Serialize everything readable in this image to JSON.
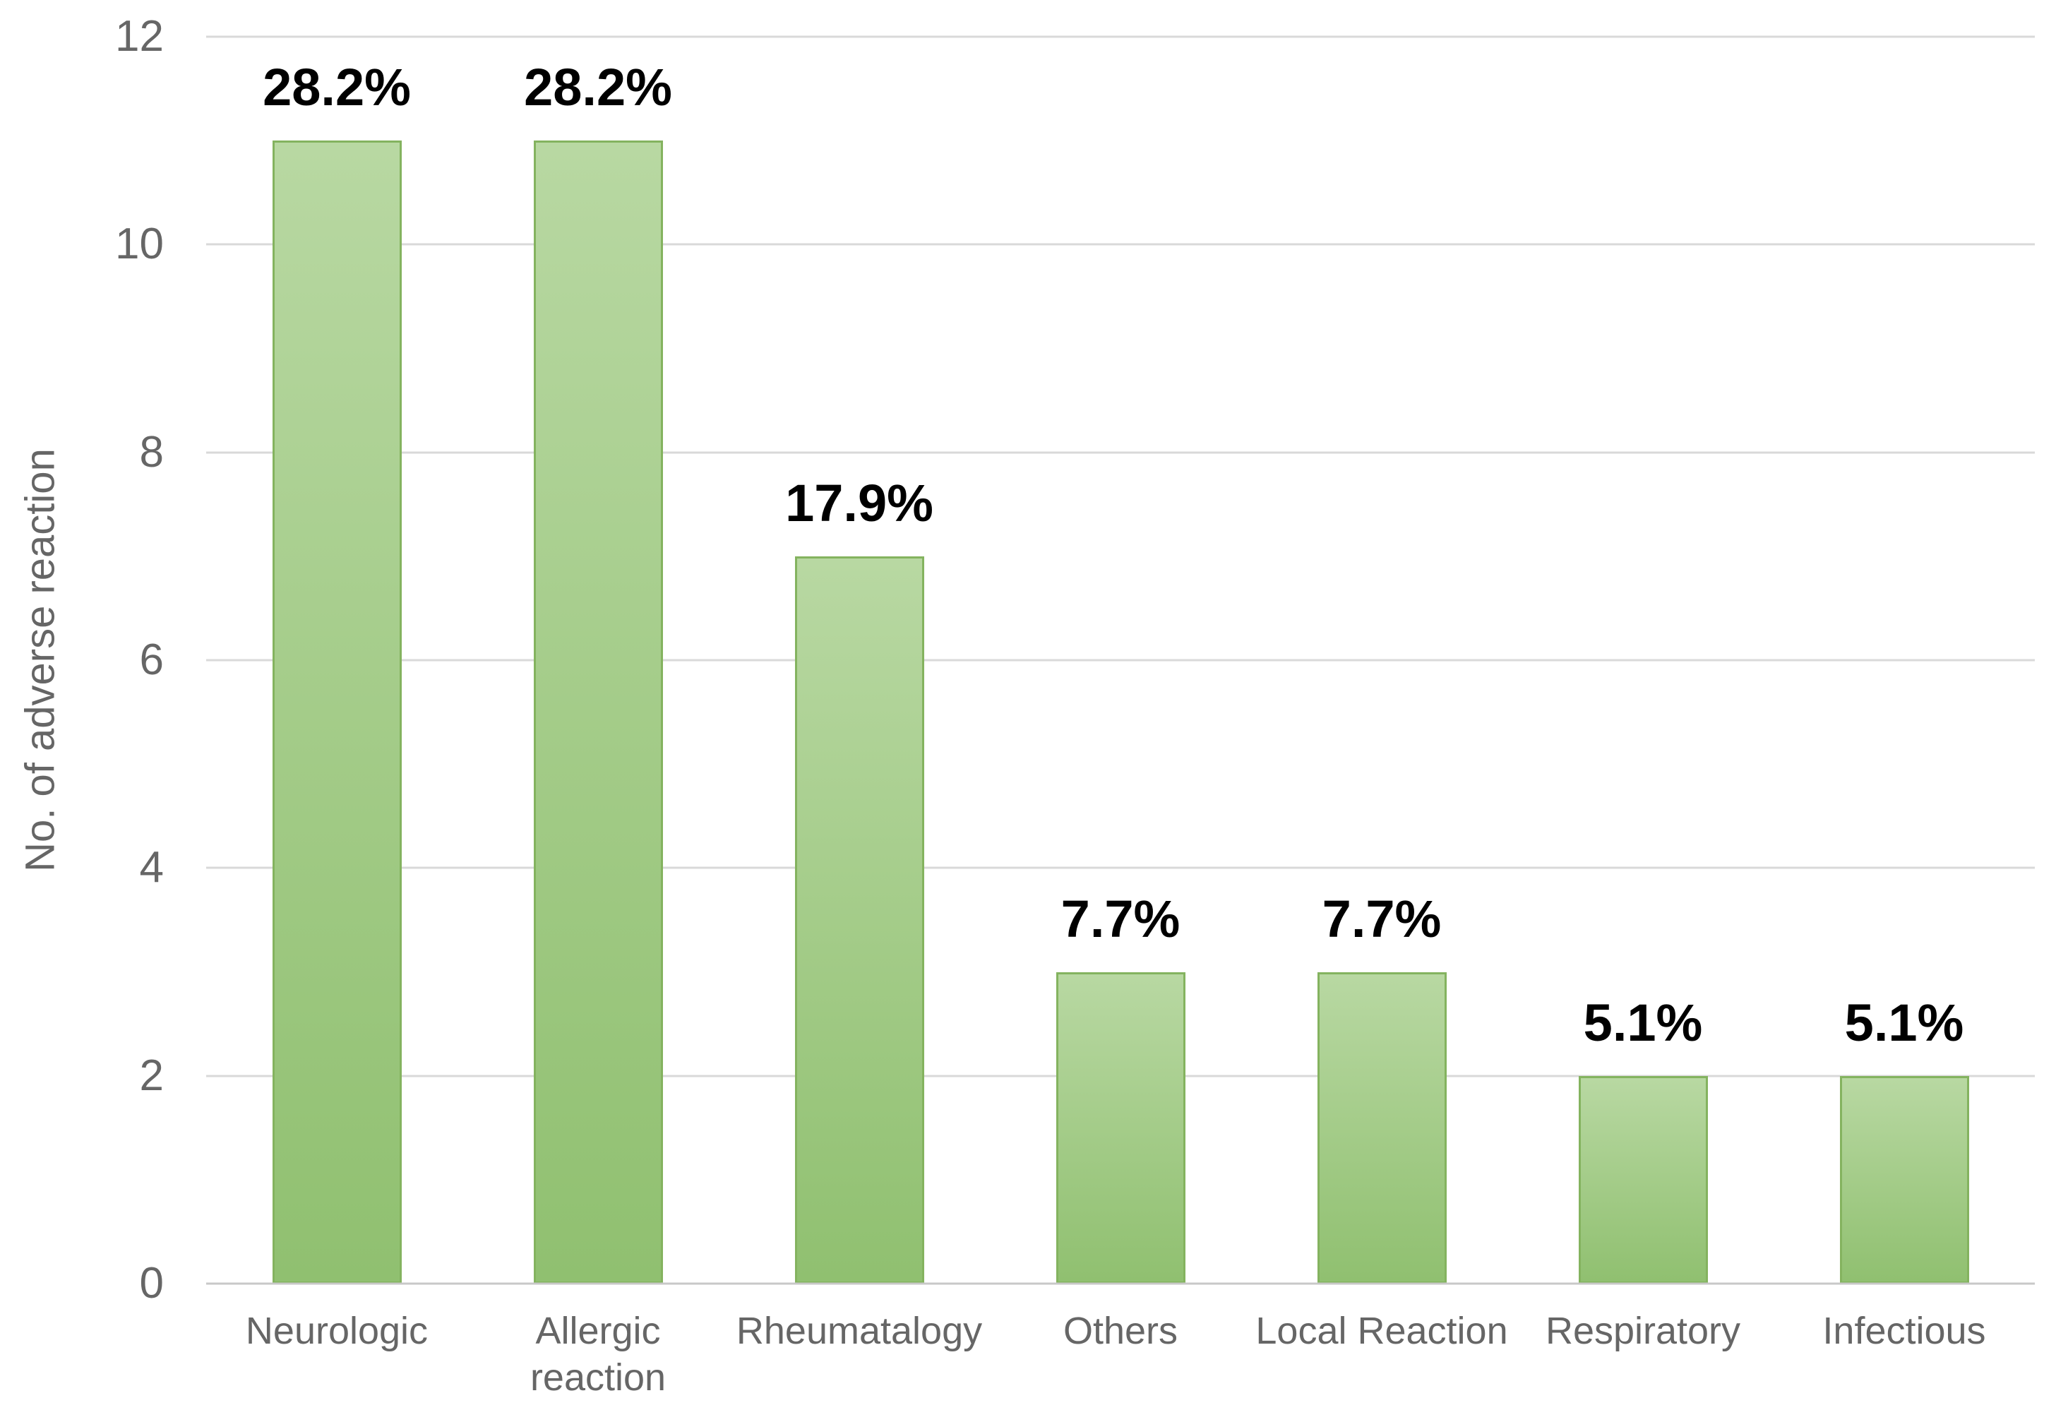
{
  "chart_data": {
    "type": "bar",
    "title": "",
    "xlabel": "",
    "ylabel": "No. of adverse reaction",
    "categories": [
      "Neurologic",
      "Allergic reaction",
      "Rheumatalogy",
      "Others",
      "Local Reaction",
      "Respiratory",
      "Infectious"
    ],
    "values": [
      11,
      11,
      7,
      3,
      3,
      2,
      2
    ],
    "value_labels": [
      "28.2%",
      "28.2%",
      "17.9%",
      "7.7%",
      "7.7%",
      "5.1%",
      "5.1%"
    ],
    "ylim": [
      0,
      12
    ],
    "ytick_step": 2,
    "ytick_labels_top_to_bottom": [
      "12",
      "10",
      "8",
      "6",
      "4",
      "2",
      "0"
    ],
    "grid": "horizontal",
    "legend": false,
    "colors": {
      "background": "#ffffff",
      "bar_fill_top": "#b8d8a2",
      "bar_fill_bottom": "#90c070",
      "bar_border": "#84b35f",
      "gridline": "#d9d9d9",
      "axis_line": "#c8c8c8",
      "axis_text": "#666666",
      "value_label_text": "#000000"
    }
  }
}
